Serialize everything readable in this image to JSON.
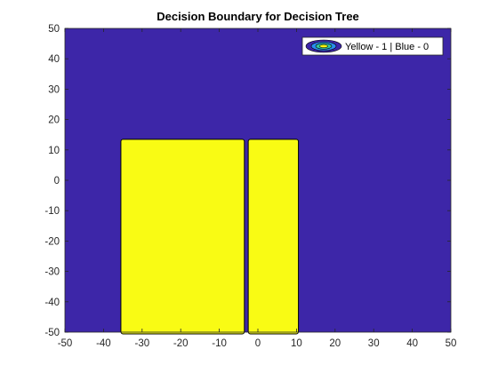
{
  "chart_data": {
    "type": "heatmap",
    "title": "Decision Boundary for Decision Tree",
    "xlabel": "",
    "ylabel": "",
    "xlim": [
      -50,
      50
    ],
    "ylim": [
      -50,
      50
    ],
    "xticks": [
      -50,
      -40,
      -30,
      -20,
      -10,
      0,
      10,
      20,
      30,
      40,
      50
    ],
    "yticks": [
      -50,
      -40,
      -30,
      -20,
      -10,
      0,
      10,
      20,
      30,
      40,
      50
    ],
    "grid": false,
    "background_class": 0,
    "class_colors": {
      "0": "#3d26a8",
      "1": "#f9fb14"
    },
    "contour_line_color": "#000000",
    "regions": [
      {
        "class": 1,
        "x": [
          -35.5,
          -3.5
        ],
        "y": [
          -50,
          13.5
        ]
      },
      {
        "class": 1,
        "x": [
          -2.5,
          10.5
        ],
        "y": [
          -50,
          13.5
        ]
      }
    ],
    "legend": {
      "label": "Yellow - 1 | Blue - 0",
      "location": "top-right"
    }
  }
}
